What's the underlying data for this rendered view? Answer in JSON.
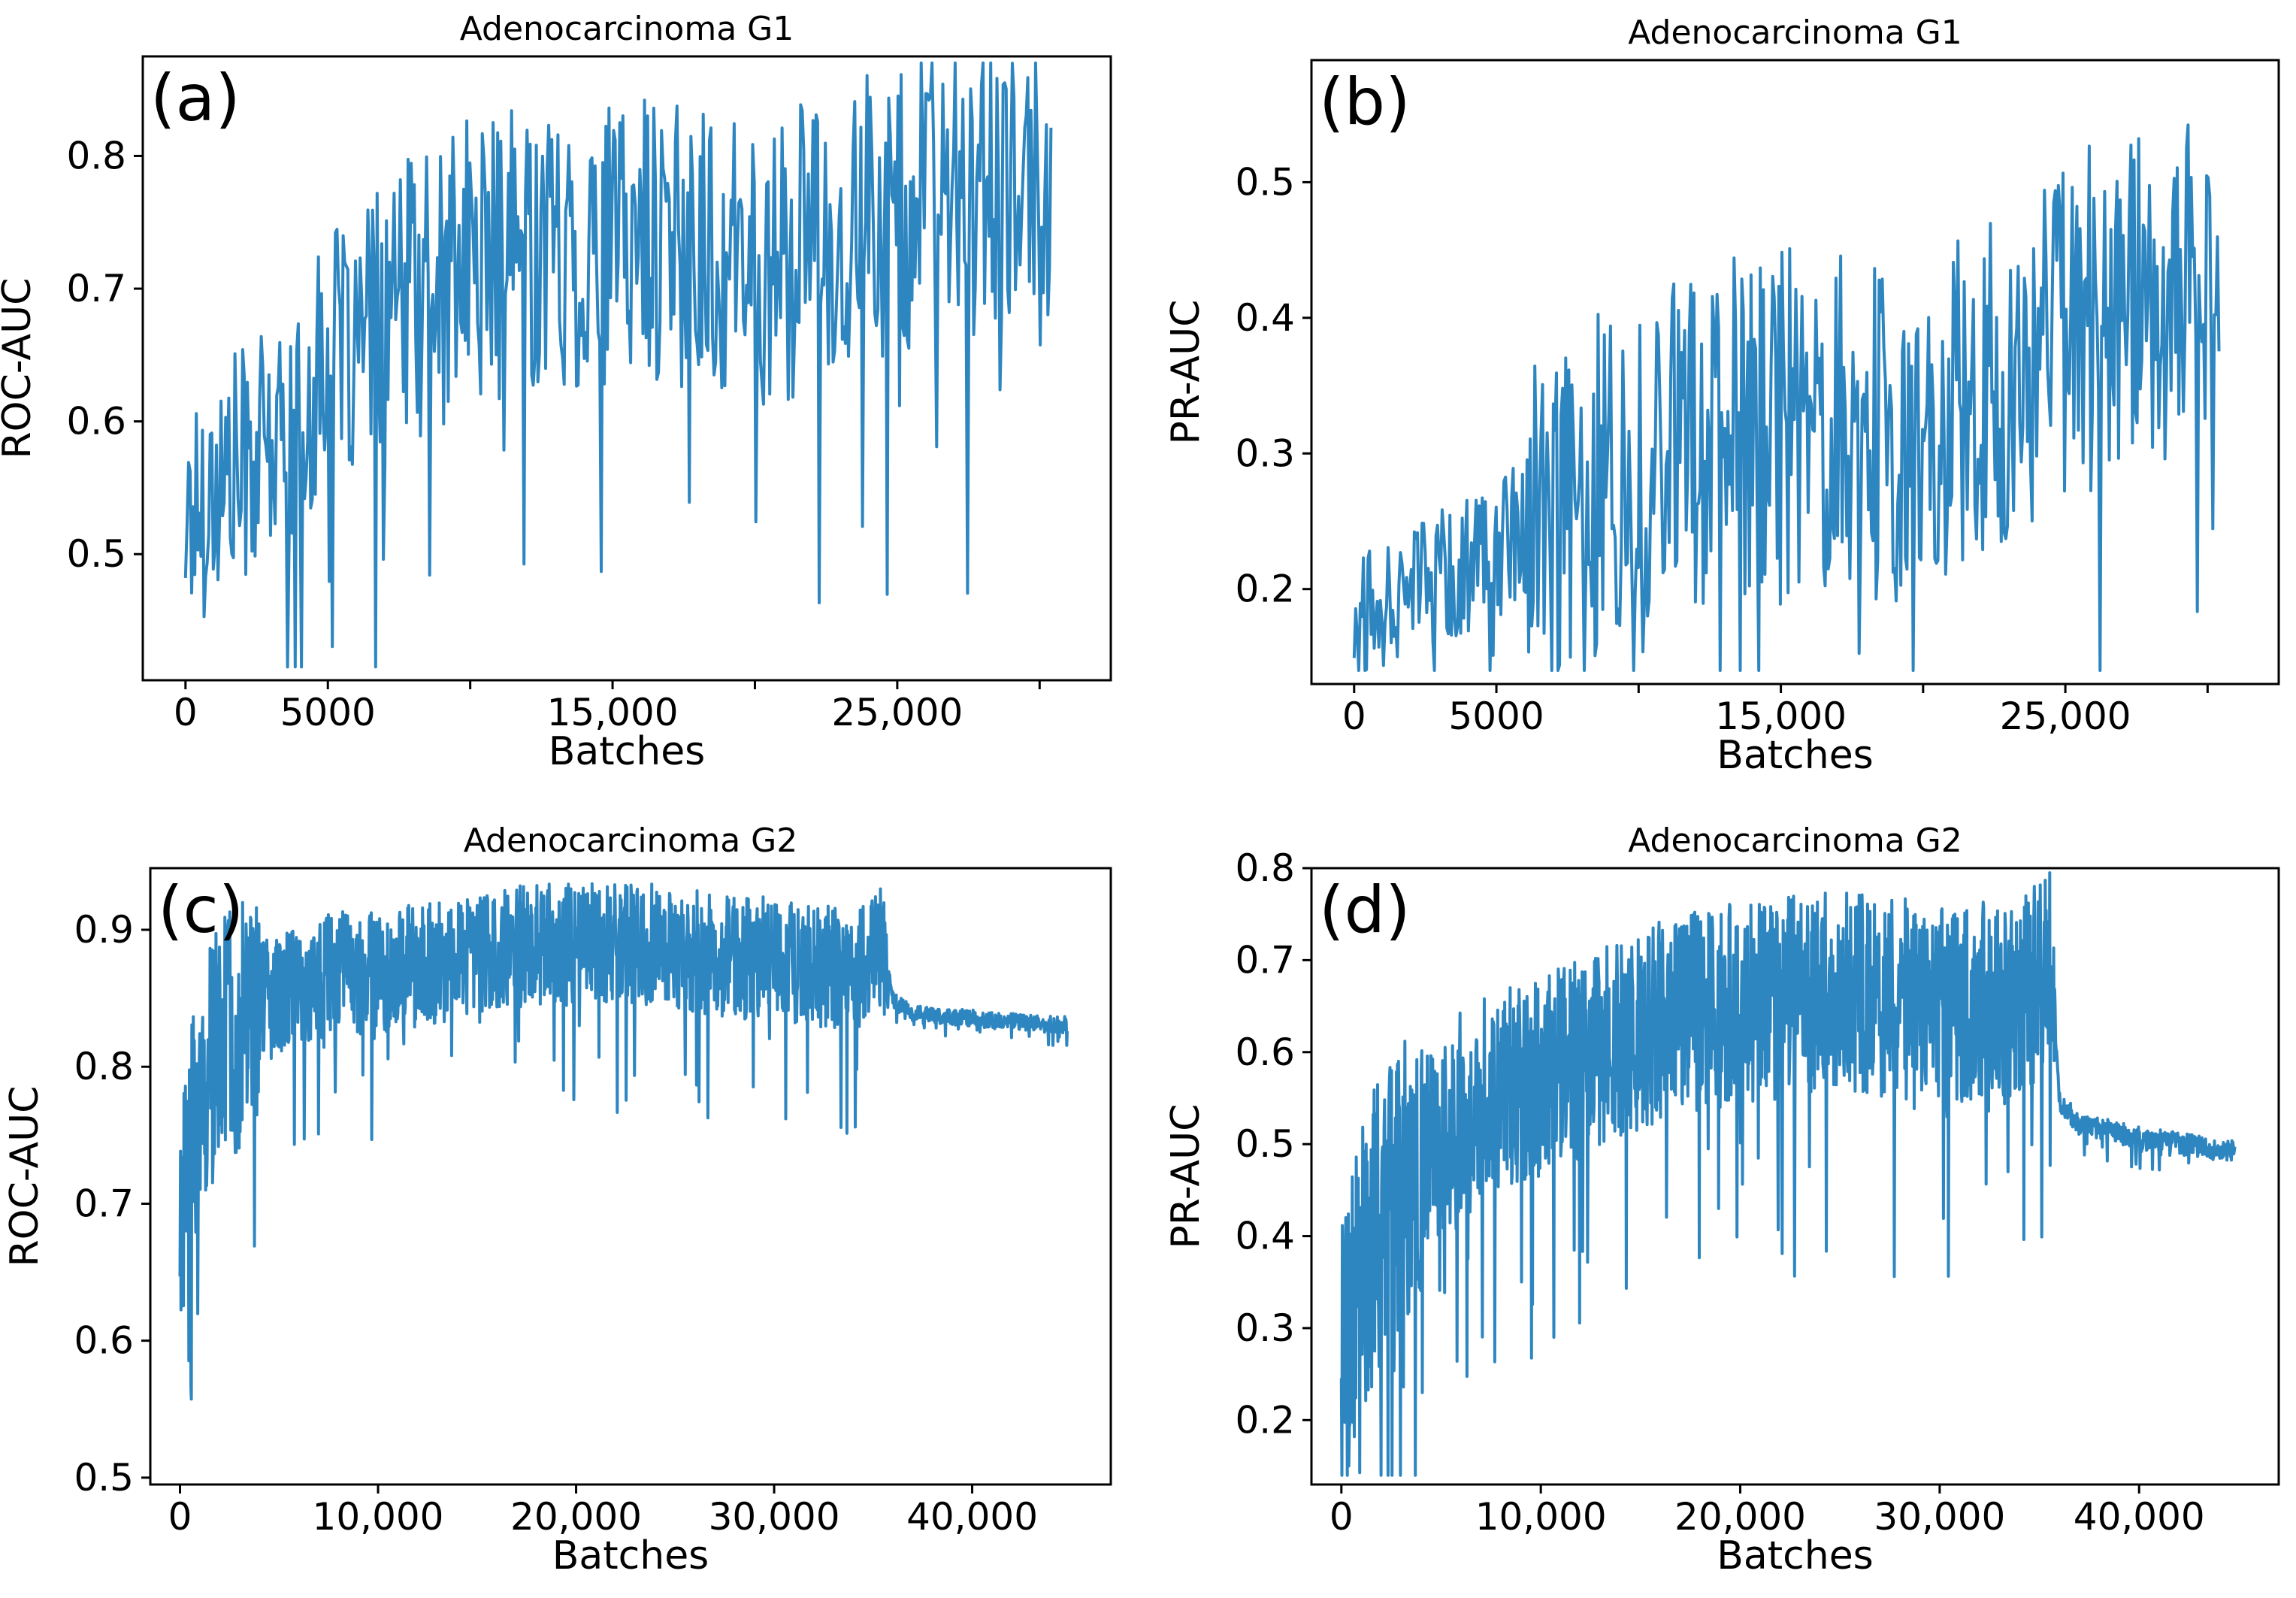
{
  "chart_data": [
    {
      "id": "a",
      "type": "line",
      "panel_label": "(a)",
      "title": "Adenocarcinoma G1",
      "xlabel": "Batches",
      "ylabel": "ROC-AUC",
      "xlim": [
        -1500,
        32500
      ],
      "ylim": [
        0.405,
        0.875
      ],
      "xticks": [
        {
          "value": 0,
          "label": "0"
        },
        {
          "value": 5000,
          "label": "5000"
        },
        {
          "value": 15000,
          "label": "15,000"
        },
        {
          "value": 25000,
          "label": "25,000"
        }
      ],
      "minor_xticks": [
        10000,
        20000,
        30000
      ],
      "yticks": [
        {
          "value": 0.5,
          "label": "0.5"
        },
        {
          "value": 0.6,
          "label": "0.6"
        },
        {
          "value": 0.7,
          "label": "0.7"
        },
        {
          "value": 0.8,
          "label": "0.8"
        }
      ],
      "color": "#2E86C1",
      "series": [
        {
          "name": "ROC-AUC",
          "x": [
            0,
            1000,
            2000,
            3000,
            4000,
            5000,
            6000,
            7000,
            8000,
            9000,
            10000,
            11000,
            12000,
            13000,
            14000,
            15000,
            16000,
            17000,
            18000,
            19000,
            20000,
            21000,
            22000,
            23000,
            24000,
            25000,
            26000,
            27000,
            28000,
            29000,
            30000,
            30400
          ],
          "y": [
            0.55,
            0.57,
            0.59,
            0.6,
            0.61,
            0.68,
            0.67,
            0.7,
            0.72,
            0.73,
            0.75,
            0.75,
            0.76,
            0.76,
            0.75,
            0.76,
            0.77,
            0.76,
            0.76,
            0.75,
            0.74,
            0.75,
            0.76,
            0.77,
            0.78,
            0.79,
            0.79,
            0.8,
            0.8,
            0.8,
            0.79,
            0.745
          ]
        }
      ]
    },
    {
      "id": "b",
      "type": "line",
      "panel_label": "(b)",
      "title": "Adenocarcinoma G1",
      "xlabel": "Batches",
      "ylabel": "PR-AUC",
      "xlim": [
        -1500,
        32500
      ],
      "ylim": [
        0.13,
        0.59
      ],
      "xticks": [
        {
          "value": 0,
          "label": "0"
        },
        {
          "value": 5000,
          "label": "5000"
        },
        {
          "value": 15000,
          "label": "15,000"
        },
        {
          "value": 25000,
          "label": "25,000"
        }
      ],
      "minor_xticks": [
        10000,
        20000,
        30000
      ],
      "yticks": [
        {
          "value": 0.2,
          "label": "0.2"
        },
        {
          "value": 0.3,
          "label": "0.3"
        },
        {
          "value": 0.4,
          "label": "0.4"
        },
        {
          "value": 0.5,
          "label": "0.5"
        }
      ],
      "color": "#2E86C1",
      "series": [
        {
          "name": "PR-AUC",
          "x": [
            0,
            1000,
            2000,
            3000,
            4000,
            5000,
            6000,
            7000,
            8000,
            9000,
            10000,
            11000,
            12000,
            13000,
            14000,
            15000,
            16000,
            17000,
            18000,
            19000,
            20000,
            21000,
            22000,
            23000,
            24000,
            25000,
            26000,
            27000,
            28000,
            29000,
            30000,
            30400
          ],
          "y": [
            0.18,
            0.2,
            0.22,
            0.22,
            0.23,
            0.24,
            0.26,
            0.28,
            0.3,
            0.31,
            0.33,
            0.34,
            0.35,
            0.35,
            0.34,
            0.35,
            0.36,
            0.35,
            0.35,
            0.34,
            0.35,
            0.37,
            0.38,
            0.39,
            0.4,
            0.42,
            0.43,
            0.44,
            0.45,
            0.45,
            0.44,
            0.35
          ]
        }
      ]
    },
    {
      "id": "c",
      "type": "line",
      "panel_label": "(c)",
      "title": "Adenocarcinoma G2",
      "xlabel": "Batches",
      "ylabel": "ROC-AUC",
      "xlim": [
        -1500,
        47000
      ],
      "ylim": [
        0.495,
        0.945
      ],
      "xticks": [
        {
          "value": 0,
          "label": "0"
        },
        {
          "value": 10000,
          "label": "10,000"
        },
        {
          "value": 20000,
          "label": "20,000"
        },
        {
          "value": 30000,
          "label": "30,000"
        },
        {
          "value": 40000,
          "label": "40,000"
        }
      ],
      "minor_xticks": [],
      "yticks": [
        {
          "value": 0.5,
          "label": "0.5"
        },
        {
          "value": 0.6,
          "label": "0.6"
        },
        {
          "value": 0.7,
          "label": "0.7"
        },
        {
          "value": 0.8,
          "label": "0.8"
        },
        {
          "value": 0.9,
          "label": "0.9"
        }
      ],
      "color": "#2E86C1",
      "series": [
        {
          "name": "ROC-AUC",
          "x": [
            0,
            500,
            1000,
            2000,
            3000,
            4000,
            5000,
            6000,
            8000,
            10000,
            12000,
            14000,
            16000,
            18000,
            20000,
            22000,
            24000,
            26000,
            28000,
            30000,
            32000,
            34000,
            35500,
            36000,
            37000,
            40000,
            43000,
            44800
          ],
          "y": [
            0.69,
            0.76,
            0.8,
            0.84,
            0.85,
            0.86,
            0.86,
            0.87,
            0.88,
            0.88,
            0.885,
            0.89,
            0.895,
            0.9,
            0.9,
            0.9,
            0.9,
            0.895,
            0.89,
            0.89,
            0.885,
            0.88,
            0.9,
            0.85,
            0.84,
            0.837,
            0.833,
            0.832
          ]
        }
      ]
    },
    {
      "id": "d",
      "type": "line",
      "panel_label": "(d)",
      "title": "Adenocarcinoma G2",
      "xlabel": "Batches",
      "ylabel": "PR-AUC",
      "xlim": [
        -1500,
        47000
      ],
      "ylim": [
        0.13,
        0.8
      ],
      "xticks": [
        {
          "value": 0,
          "label": "0"
        },
        {
          "value": 10000,
          "label": "10,000"
        },
        {
          "value": 20000,
          "label": "20,000"
        },
        {
          "value": 30000,
          "label": "30,000"
        },
        {
          "value": 40000,
          "label": "40,000"
        }
      ],
      "minor_xticks": [],
      "yticks": [
        {
          "value": 0.2,
          "label": "0.2"
        },
        {
          "value": 0.3,
          "label": "0.3"
        },
        {
          "value": 0.4,
          "label": "0.4"
        },
        {
          "value": 0.5,
          "label": "0.5"
        },
        {
          "value": 0.6,
          "label": "0.6"
        },
        {
          "value": 0.7,
          "label": "0.7"
        },
        {
          "value": 0.8,
          "label": "0.8"
        }
      ],
      "color": "#2E86C1",
      "series": [
        {
          "name": "PR-AUC",
          "x": [
            0,
            500,
            1000,
            2000,
            3000,
            4000,
            5000,
            6000,
            8000,
            10000,
            12000,
            14000,
            16000,
            18000,
            20000,
            22000,
            24000,
            26000,
            28000,
            30000,
            32000,
            34000,
            35500,
            36000,
            37000,
            40000,
            43000,
            44800
          ],
          "y": [
            0.3,
            0.35,
            0.4,
            0.46,
            0.5,
            0.52,
            0.54,
            0.56,
            0.59,
            0.6,
            0.62,
            0.64,
            0.66,
            0.67,
            0.68,
            0.685,
            0.69,
            0.69,
            0.685,
            0.68,
            0.68,
            0.68,
            0.73,
            0.55,
            0.525,
            0.51,
            0.5,
            0.495
          ]
        }
      ]
    }
  ]
}
